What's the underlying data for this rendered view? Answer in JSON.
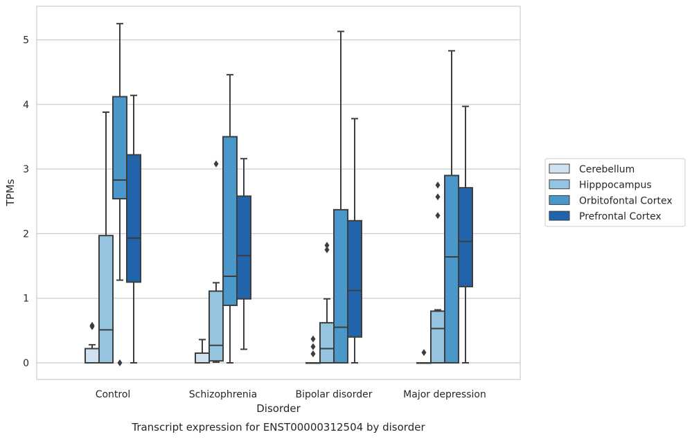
{
  "chart_data": {
    "type": "box",
    "title": "Transcript expression for ENST00000312504 by disorder",
    "xlabel": "Disorder",
    "ylabel": "TPMs",
    "ylim": [
      -0.25,
      5.52
    ],
    "yticks": [
      0,
      1,
      2,
      3,
      4,
      5
    ],
    "grid": "horizontal",
    "legend_position": "right",
    "categories": [
      "Control",
      "Schizophrenia",
      "Bipolar disorder",
      "Major depression"
    ],
    "series": [
      {
        "name": "Cerebellum",
        "color": "#d0e1f2",
        "boxes": [
          {
            "whisker_low": 0,
            "q1": 0,
            "median": 0,
            "q3": 0.22,
            "whisker_high": 0.28,
            "outliers": [
              0.56,
              0.58
            ]
          },
          {
            "whisker_low": 0,
            "q1": 0,
            "median": 0,
            "q3": 0.15,
            "whisker_high": 0.36,
            "outliers": []
          },
          {
            "whisker_low": 0,
            "q1": 0,
            "median": 0,
            "q3": 0,
            "whisker_high": 0,
            "outliers": [
              0.14,
              0.25,
              0.37
            ]
          },
          {
            "whisker_low": 0,
            "q1": 0,
            "median": 0,
            "q3": 0,
            "whisker_high": 0,
            "outliers": [
              0.16
            ]
          }
        ]
      },
      {
        "name": "Hipppocampus",
        "color": "#94c4df",
        "boxes": [
          {
            "whisker_low": 0,
            "q1": 0,
            "median": 0.51,
            "q3": 1.97,
            "whisker_high": 3.88,
            "outliers": []
          },
          {
            "whisker_low": 0.01,
            "q1": 0.03,
            "median": 0.27,
            "q3": 1.11,
            "whisker_high": 1.24,
            "outliers": [
              3.08
            ]
          },
          {
            "whisker_low": 0,
            "q1": 0,
            "median": 0.22,
            "q3": 0.62,
            "whisker_high": 0.99,
            "outliers": [
              1.75,
              1.82
            ]
          },
          {
            "whisker_low": 0,
            "q1": 0,
            "median": 0.53,
            "q3": 0.8,
            "whisker_high": 0.82,
            "outliers": [
              2.28,
              2.57,
              2.75
            ]
          }
        ]
      },
      {
        "name": "Orbitofontal Cortex",
        "color": "#4a98c9",
        "boxes": [
          {
            "whisker_low": 1.28,
            "q1": 2.54,
            "median": 2.83,
            "q3": 4.12,
            "whisker_high": 5.25,
            "outliers": [
              0
            ]
          },
          {
            "whisker_low": 0,
            "q1": 0.89,
            "median": 1.34,
            "q3": 3.5,
            "whisker_high": 4.46,
            "outliers": []
          },
          {
            "whisker_low": 0,
            "q1": 0,
            "median": 0.55,
            "q3": 2.37,
            "whisker_high": 5.13,
            "outliers": []
          },
          {
            "whisker_low": 0,
            "q1": 0,
            "median": 1.64,
            "q3": 2.9,
            "whisker_high": 4.83,
            "outliers": []
          }
        ]
      },
      {
        "name": "Prefrontal Cortex",
        "color": "#2164ab",
        "boxes": [
          {
            "whisker_low": 0,
            "q1": 1.25,
            "median": 1.93,
            "q3": 3.22,
            "whisker_high": 4.14,
            "outliers": []
          },
          {
            "whisker_low": 0.21,
            "q1": 0.99,
            "median": 1.66,
            "q3": 2.58,
            "whisker_high": 3.16,
            "outliers": []
          },
          {
            "whisker_low": 0,
            "q1": 0.4,
            "median": 1.12,
            "q3": 2.2,
            "whisker_high": 3.78,
            "outliers": []
          },
          {
            "whisker_low": 0,
            "q1": 1.18,
            "median": 1.88,
            "q3": 2.71,
            "whisker_high": 3.97,
            "outliers": []
          }
        ]
      }
    ]
  }
}
